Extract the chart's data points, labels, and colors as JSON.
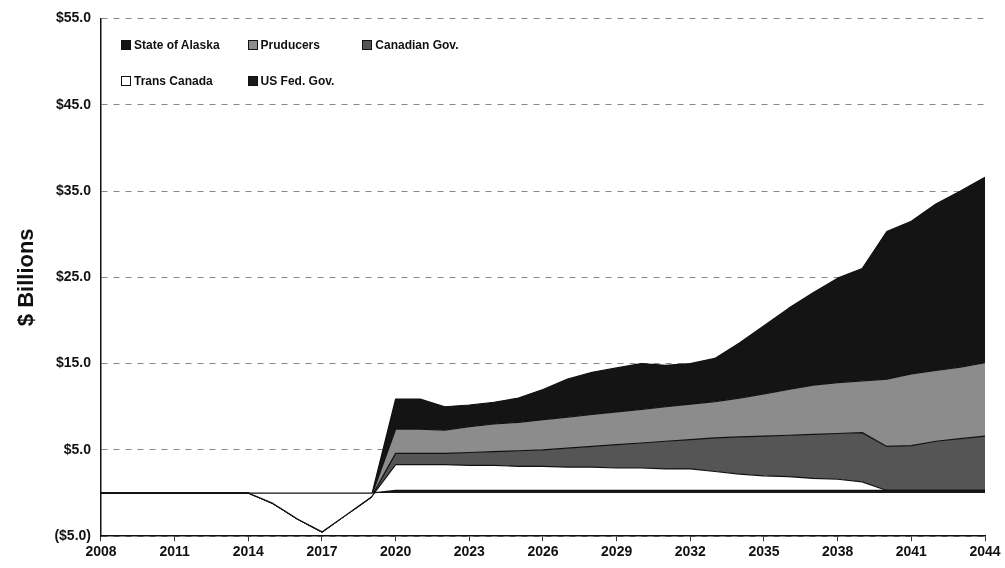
{
  "chart_data": {
    "type": "area",
    "ylabel": "$ Billions",
    "stacked": true,
    "grid": "y",
    "legend": "top left",
    "x": [
      2008,
      2009,
      2010,
      2011,
      2012,
      2013,
      2014,
      2015,
      2016,
      2017,
      2018,
      2019,
      2020,
      2021,
      2022,
      2023,
      2024,
      2025,
      2026,
      2027,
      2028,
      2029,
      2030,
      2031,
      2032,
      2033,
      2034,
      2035,
      2036,
      2037,
      2038,
      2039,
      2040,
      2041,
      2042,
      2043,
      2044
    ],
    "xlim": [
      2008,
      2044
    ],
    "xticks": [
      2008,
      2011,
      2014,
      2017,
      2020,
      2023,
      2026,
      2029,
      2032,
      2035,
      2038,
      2041,
      2044
    ],
    "ylim": [
      -5,
      55
    ],
    "yticks": [
      {
        "value": -5,
        "label": "($5.0)"
      },
      {
        "value": 5,
        "label": "$5.0"
      },
      {
        "value": 15,
        "label": "$15.0"
      },
      {
        "value": 25,
        "label": "$25.0"
      },
      {
        "value": 35,
        "label": "$35.0"
      },
      {
        "value": 45,
        "label": "$45.0"
      },
      {
        "value": 55,
        "label": "$55.0"
      }
    ],
    "series": [
      {
        "name": "US Fed. Gov.",
        "color": "#1a1a1a",
        "values": [
          0,
          0,
          0,
          0,
          0,
          0,
          0,
          0,
          0,
          0,
          0,
          0,
          0.3,
          0.3,
          0.3,
          0.3,
          0.3,
          0.3,
          0.3,
          0.3,
          0.3,
          0.3,
          0.3,
          0.3,
          0.3,
          0.3,
          0.3,
          0.3,
          0.3,
          0.3,
          0.3,
          0.3,
          0.3,
          0.3,
          0.3,
          0.3,
          0.3
        ]
      },
      {
        "name": "Trans Canada",
        "color": "#ffffff",
        "values": [
          0,
          0,
          0,
          0,
          0,
          0,
          0,
          -1.2,
          -3.0,
          -4.5,
          -2.5,
          -0.5,
          3.0,
          3.0,
          3.0,
          2.9,
          2.9,
          2.8,
          2.8,
          2.7,
          2.7,
          2.6,
          2.6,
          2.5,
          2.5,
          2.2,
          1.9,
          1.7,
          1.6,
          1.4,
          1.3,
          1.0,
          0,
          0,
          0,
          0,
          0
        ]
      },
      {
        "name": "Canadian Gov.",
        "color": "#555555",
        "values": [
          0,
          0,
          0,
          0,
          0,
          0,
          0,
          0,
          0,
          0,
          0,
          0,
          1.3,
          1.3,
          1.3,
          1.5,
          1.6,
          1.8,
          1.9,
          2.2,
          2.4,
          2.7,
          2.9,
          3.2,
          3.4,
          3.9,
          4.3,
          4.6,
          4.8,
          5.1,
          5.3,
          5.7,
          5.1,
          5.2,
          5.7,
          6.0,
          6.3
        ]
      },
      {
        "name": "Pruducers",
        "color": "#8c8c8c",
        "values": [
          0,
          0,
          0,
          0,
          0,
          0,
          0,
          0,
          0,
          0,
          0,
          0,
          2.8,
          2.8,
          2.7,
          3.0,
          3.2,
          3.3,
          3.5,
          3.6,
          3.7,
          3.8,
          3.9,
          4.0,
          4.1,
          4.2,
          4.5,
          4.9,
          5.3,
          5.7,
          5.9,
          6.0,
          7.8,
          8.3,
          8.2,
          8.3,
          8.5
        ]
      },
      {
        "name": "State of Alaska",
        "color": "#141414",
        "values": [
          0,
          0,
          0,
          0,
          0,
          0,
          0,
          0,
          0,
          0,
          0,
          0,
          3.5,
          3.5,
          2.7,
          2.5,
          2.5,
          2.8,
          3.5,
          4.4,
          4.9,
          5.1,
          5.3,
          4.8,
          4.7,
          5.0,
          6.4,
          7.9,
          9.4,
          10.7,
          12.1,
          13.0,
          17.1,
          17.7,
          19.3,
          20.4,
          21.5
        ]
      }
    ]
  }
}
